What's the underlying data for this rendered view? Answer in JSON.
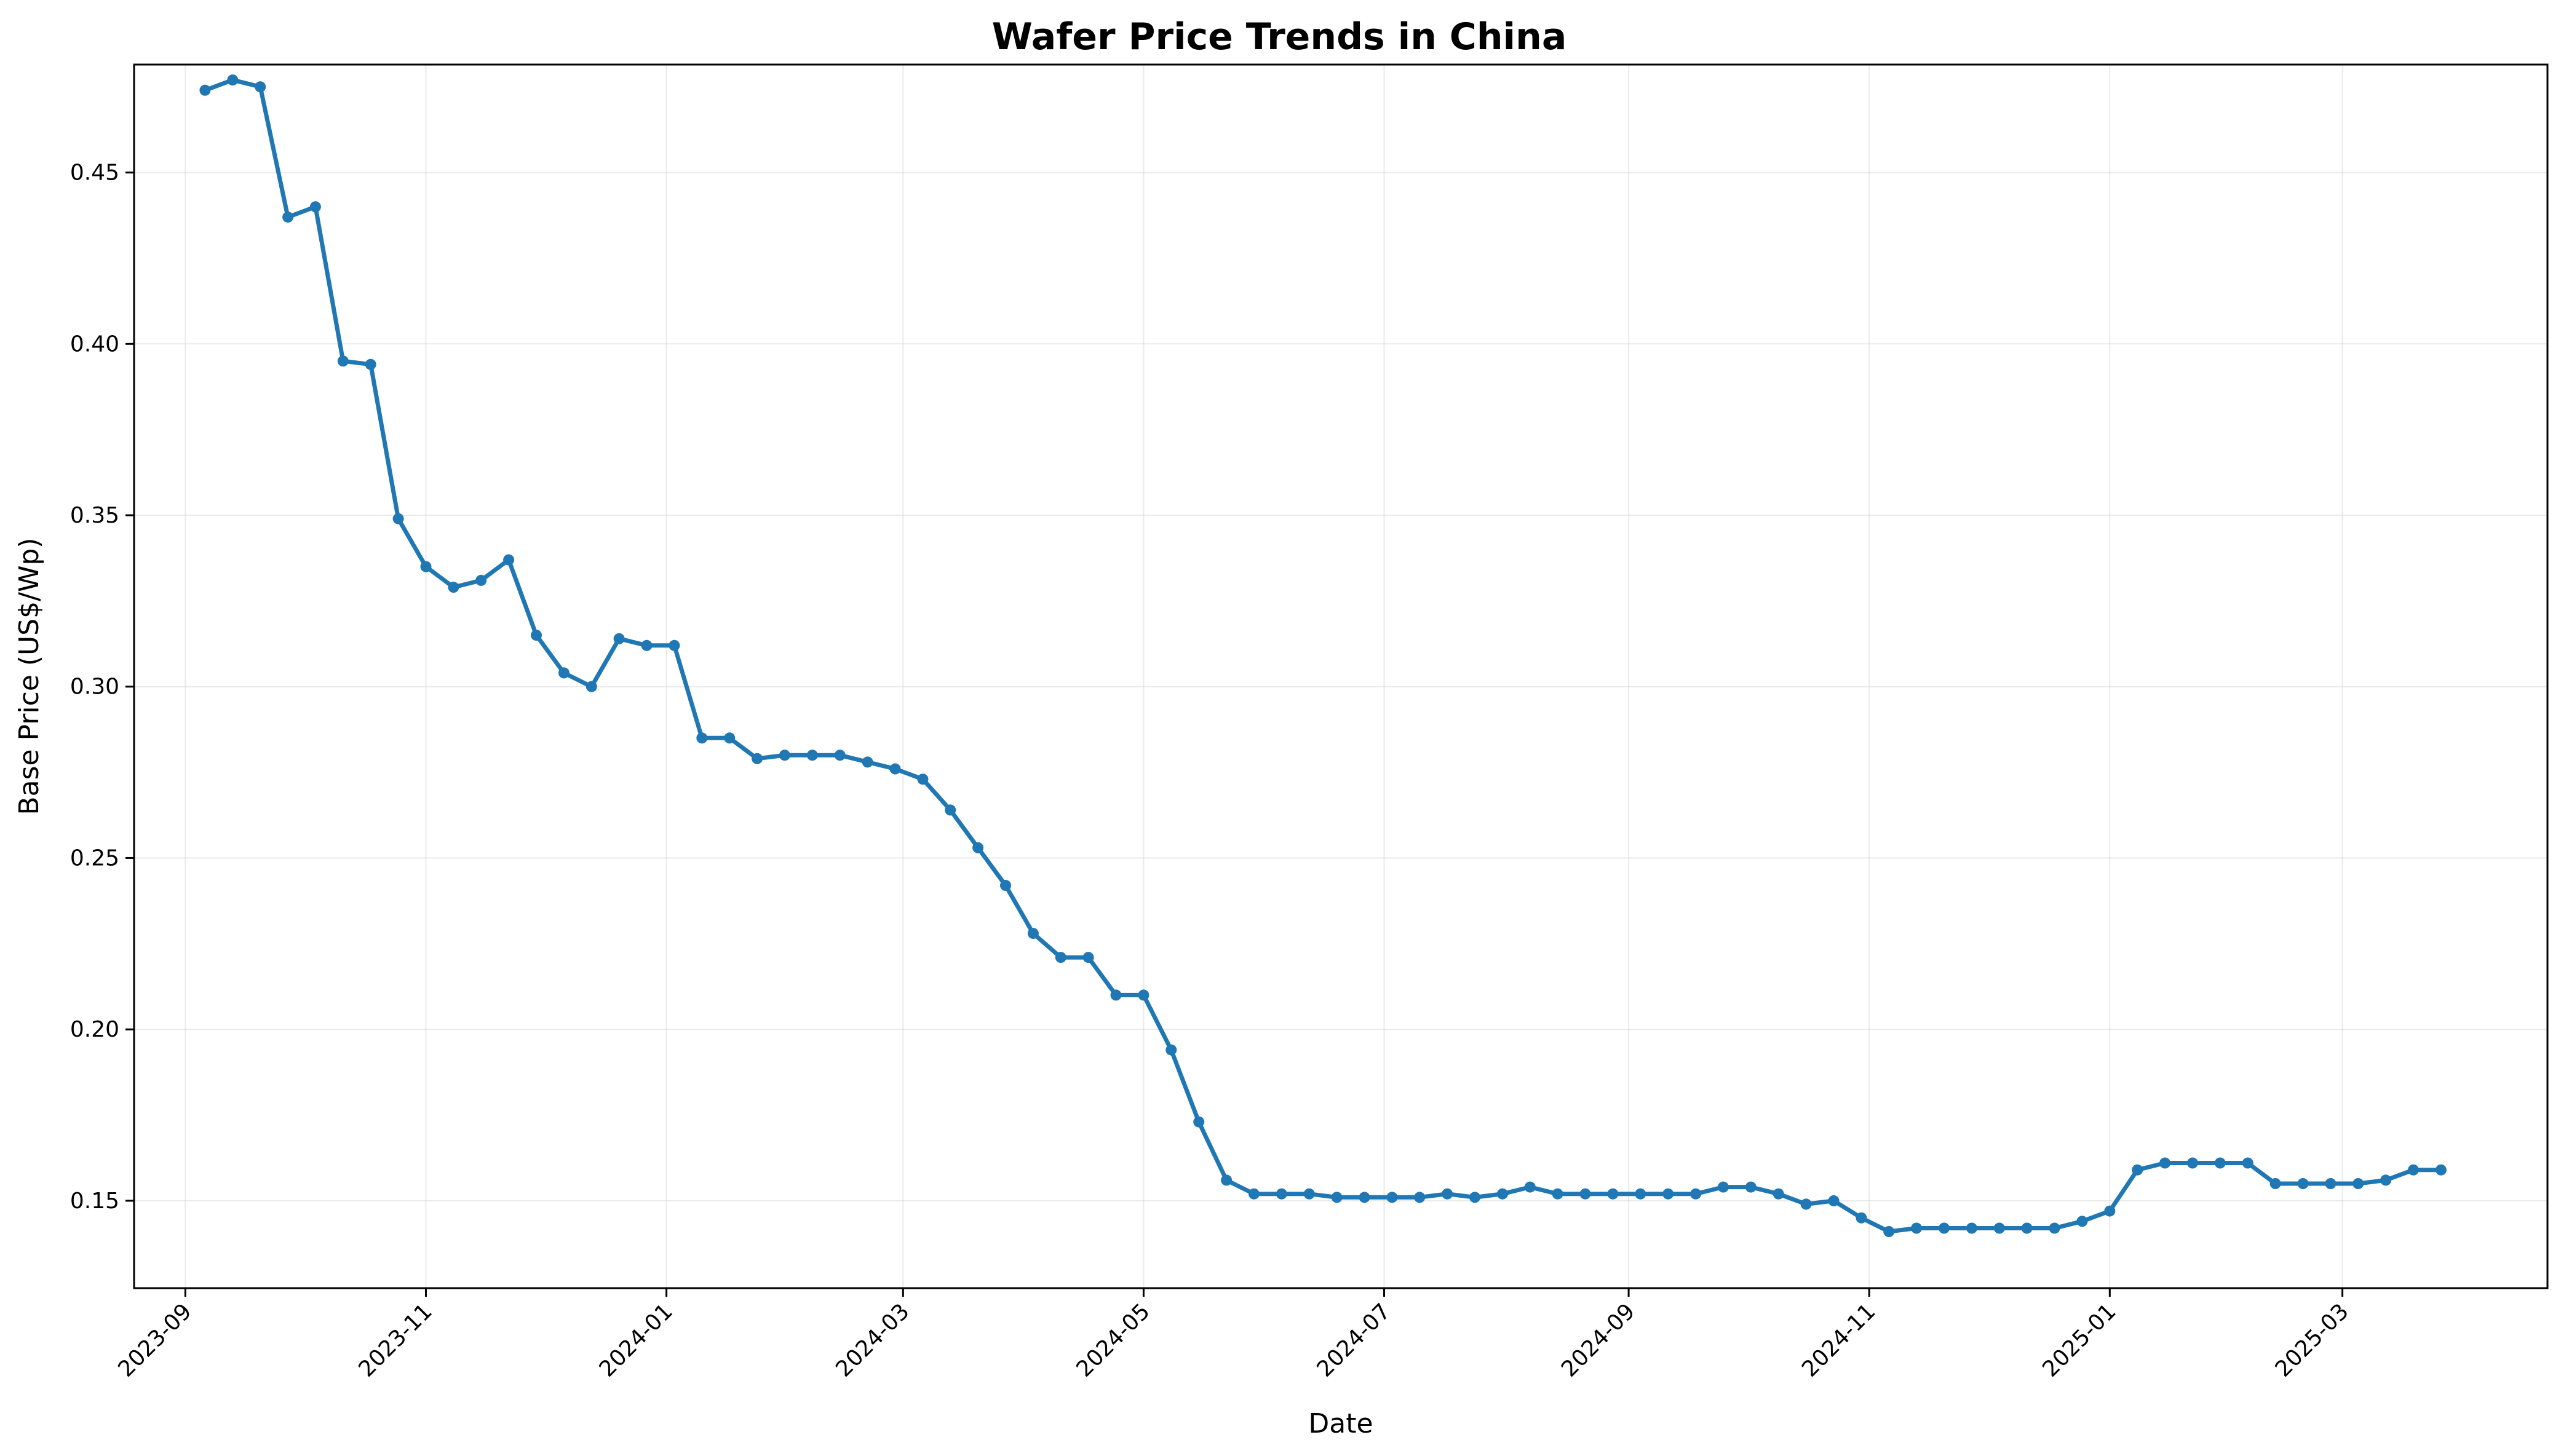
{
  "chart_data": {
    "type": "line",
    "title": "Wafer Price Trends in China",
    "xlabel": "Date",
    "ylabel": "Base Price (US$/Wp)",
    "grid": true,
    "legend": "none",
    "color": "#1f77b4",
    "xlim": [
      "2023-08-19",
      "2025-04-22"
    ],
    "ylim": [
      0.1245,
      0.4815
    ],
    "x_ticks": [
      "2023-09",
      "2023-11",
      "2024-01",
      "2024-03",
      "2024-05",
      "2024-07",
      "2024-09",
      "2024-11",
      "2025-01",
      "2025-03"
    ],
    "y_ticks": [
      "0.15",
      "0.20",
      "0.25",
      "0.30",
      "0.35",
      "0.40",
      "0.45"
    ],
    "series": [
      {
        "x": [
          "2023-09-06",
          "2023-09-13",
          "2023-09-20",
          "2023-09-27",
          "2023-10-04",
          "2023-10-11",
          "2023-10-18",
          "2023-10-25",
          "2023-11-01",
          "2023-11-08",
          "2023-11-15",
          "2023-11-22",
          "2023-11-29",
          "2023-12-06",
          "2023-12-13",
          "2023-12-20",
          "2023-12-27",
          "2024-01-03",
          "2024-01-10",
          "2024-01-17",
          "2024-01-24",
          "2024-01-31",
          "2024-02-07",
          "2024-02-14",
          "2024-02-21",
          "2024-02-28",
          "2024-03-06",
          "2024-03-13",
          "2024-03-20",
          "2024-03-27",
          "2024-04-03",
          "2024-04-10",
          "2024-04-17",
          "2024-04-24",
          "2024-05-01",
          "2024-05-08",
          "2024-05-15",
          "2024-05-22",
          "2024-05-29",
          "2024-06-05",
          "2024-06-12",
          "2024-06-19",
          "2024-06-26",
          "2024-07-03",
          "2024-07-10",
          "2024-07-17",
          "2024-07-24",
          "2024-07-31",
          "2024-08-07",
          "2024-08-14",
          "2024-08-21",
          "2024-08-28",
          "2024-09-04",
          "2024-09-11",
          "2024-09-18",
          "2024-09-25",
          "2024-10-02",
          "2024-10-09",
          "2024-10-16",
          "2024-10-23",
          "2024-10-30",
          "2024-11-06",
          "2024-11-13",
          "2024-11-20",
          "2024-11-27",
          "2024-12-04",
          "2024-12-11",
          "2024-12-18",
          "2024-12-25",
          "2025-01-01",
          "2025-01-08",
          "2025-01-15",
          "2025-01-22",
          "2025-01-29",
          "2025-02-05",
          "2025-02-12",
          "2025-02-19",
          "2025-02-26",
          "2025-03-05",
          "2025-03-12",
          "2025-03-19",
          "2025-03-26"
        ],
        "y": [
          0.474,
          0.477,
          0.475,
          0.437,
          0.44,
          0.395,
          0.394,
          0.349,
          0.335,
          0.329,
          0.331,
          0.337,
          0.315,
          0.304,
          0.3,
          0.314,
          0.312,
          0.312,
          0.285,
          0.285,
          0.279,
          0.28,
          0.28,
          0.28,
          0.278,
          0.276,
          0.273,
          0.264,
          0.253,
          0.242,
          0.228,
          0.221,
          0.221,
          0.21,
          0.21,
          0.194,
          0.173,
          0.156,
          0.152,
          0.152,
          0.152,
          0.151,
          0.151,
          0.151,
          0.151,
          0.152,
          0.151,
          0.152,
          0.154,
          0.152,
          0.152,
          0.152,
          0.152,
          0.152,
          0.152,
          0.154,
          0.154,
          0.152,
          0.149,
          0.15,
          0.145,
          0.141,
          0.142,
          0.142,
          0.142,
          0.142,
          0.142,
          0.142,
          0.144,
          0.147,
          0.159,
          0.161,
          0.161,
          0.161,
          0.161,
          0.155,
          0.155,
          0.155,
          0.155,
          0.156,
          0.159,
          0.159
        ]
      }
    ]
  }
}
